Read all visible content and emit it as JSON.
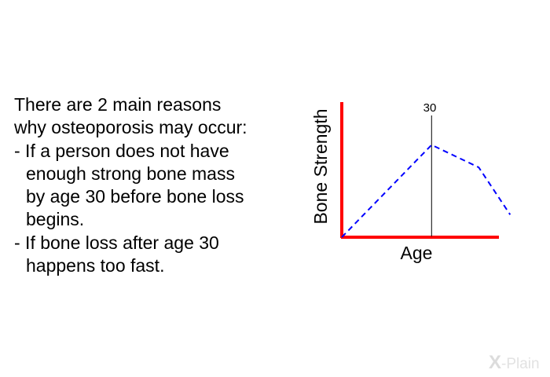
{
  "text": {
    "l1": "There are 2 main reasons",
    "l2": "why osteoporosis may occur:",
    "l3": "- If a person does not have",
    "l4": "enough strong bone mass",
    "l5": "by age 30 before bone loss",
    "l6": "begins.",
    "l7": "- If bone loss after age 30",
    "l8": "happens too fast."
  },
  "chart_data": {
    "type": "line",
    "xlabel": "Age",
    "ylabel": "Bone Strength",
    "marker_label": "30",
    "xlim": [
      0,
      35
    ],
    "ylim": [
      0,
      30
    ],
    "marker_x": 20,
    "series": [
      {
        "x": [
          0,
          20,
          30.5,
          37.5
        ],
        "y": [
          0,
          20.5,
          15.5,
          5
        ]
      }
    ],
    "grid": false,
    "colors": {
      "axes": "#ff0000",
      "line": "#0000ff",
      "marker": "#000000"
    }
  },
  "logo": {
    "x_mark": "X",
    "text": "-Plain"
  }
}
